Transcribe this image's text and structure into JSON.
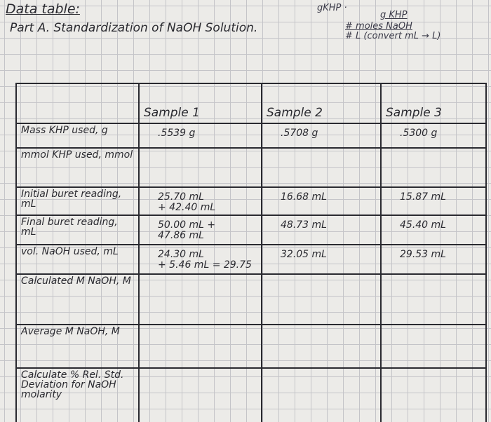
{
  "header": {
    "title": "Data table:",
    "section": "Part A. Standardization of NaOH Solution."
  },
  "notes": [
    "gKHP ·",
    "g KHP",
    "# moles NaOH",
    "# L (convert mL → L)"
  ],
  "table": {
    "columns": [
      "Sample 1",
      "Sample 2",
      "Sample 3"
    ],
    "rows": [
      {
        "label": "Mass KHP used, g",
        "cells": [
          [
            ".5539 g"
          ],
          [
            ".5708 g"
          ],
          [
            ".5300 g"
          ]
        ]
      },
      {
        "label": "mmol KHP used, mmol"
      },
      {
        "label": "Initial buret reading, mL",
        "cells": [
          [
            "25.70 mL",
            "+ 42.40 mL"
          ],
          [
            "16.68 mL"
          ],
          [
            "15.87 mL"
          ]
        ]
      },
      {
        "label": "Final buret reading, mL",
        "cells": [
          [
            "50.00 mL +",
            "47.86 mL"
          ],
          [
            "48.73 mL"
          ],
          [
            "45.40 mL"
          ]
        ]
      },
      {
        "label": "vol. NaOH used, mL",
        "cells": [
          [
            "24.30 mL",
            "+ 5.46 mL = 29.75"
          ],
          [
            "32.05 mL"
          ],
          [
            "29.53 mL"
          ]
        ]
      },
      {
        "label": "Calculated M NaOH, M"
      },
      {
        "label": "Average M NaOH, M"
      },
      {
        "label": "Calculate % Rel. Std. Deviation for NaOH molarity"
      }
    ]
  }
}
